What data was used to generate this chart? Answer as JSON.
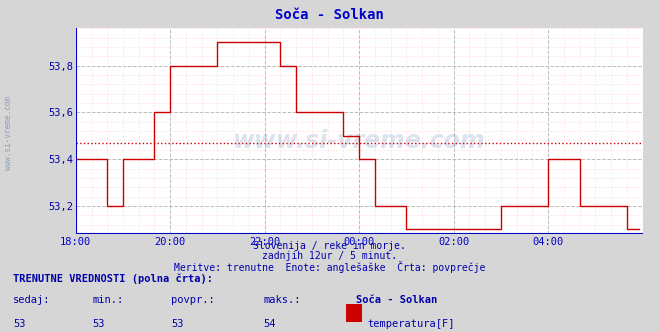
{
  "title": "Soča - Solkan",
  "bg_color": "#d6d6d6",
  "plot_bg_color": "#ffffff",
  "line_color": "#cc0000",
  "avg_line_color": "#cc0000",
  "x_axis_color": "#0000cc",
  "y_axis_color": "#0000aa",
  "title_color": "#0000cc",
  "subtitle_color": "#0000aa",
  "xticks": [
    "18:00",
    "20:00",
    "22:00",
    "00:00",
    "02:00",
    "04:00"
  ],
  "xtick_positions": [
    0,
    24,
    48,
    72,
    96,
    120
  ],
  "yticks": [
    "53,2",
    "53,4",
    "53,6",
    "53,8"
  ],
  "ytick_values": [
    53.2,
    53.4,
    53.6,
    53.8
  ],
  "ylim": [
    53.08,
    53.96
  ],
  "xlim": [
    0,
    144
  ],
  "avg_value": 53.47,
  "data_x": [
    0,
    1,
    2,
    3,
    4,
    5,
    6,
    7,
    8,
    9,
    10,
    11,
    12,
    13,
    14,
    15,
    16,
    17,
    18,
    19,
    20,
    21,
    22,
    23,
    24,
    25,
    26,
    27,
    28,
    29,
    30,
    31,
    32,
    33,
    34,
    35,
    36,
    37,
    38,
    39,
    40,
    41,
    42,
    43,
    44,
    45,
    46,
    47,
    48,
    49,
    50,
    51,
    52,
    53,
    54,
    55,
    56,
    57,
    58,
    59,
    60,
    61,
    62,
    63,
    64,
    65,
    66,
    67,
    68,
    69,
    70,
    71,
    72,
    73,
    74,
    75,
    76,
    77,
    78,
    79,
    80,
    81,
    82,
    83,
    84,
    85,
    86,
    87,
    88,
    89,
    90,
    91,
    92,
    93,
    94,
    95,
    96,
    97,
    98,
    99,
    100,
    101,
    102,
    103,
    104,
    105,
    106,
    107,
    108,
    109,
    110,
    111,
    112,
    113,
    114,
    115,
    116,
    117,
    118,
    119,
    120,
    121,
    122,
    123,
    124,
    125,
    126,
    127,
    128,
    129,
    130,
    131,
    132,
    133,
    134,
    135,
    136,
    137,
    138,
    139,
    140,
    141,
    142,
    143
  ],
  "data_y": [
    53.4,
    53.4,
    53.4,
    53.4,
    53.4,
    53.4,
    53.4,
    53.4,
    53.2,
    53.2,
    53.2,
    53.2,
    53.4,
    53.4,
    53.4,
    53.4,
    53.4,
    53.4,
    53.4,
    53.4,
    53.6,
    53.6,
    53.6,
    53.6,
    53.8,
    53.8,
    53.8,
    53.8,
    53.8,
    53.8,
    53.8,
    53.8,
    53.8,
    53.8,
    53.8,
    53.8,
    53.9,
    53.9,
    53.9,
    53.9,
    53.9,
    53.9,
    53.9,
    53.9,
    53.9,
    53.9,
    53.9,
    53.9,
    53.9,
    53.9,
    53.9,
    53.9,
    53.8,
    53.8,
    53.8,
    53.8,
    53.6,
    53.6,
    53.6,
    53.6,
    53.6,
    53.6,
    53.6,
    53.6,
    53.6,
    53.6,
    53.6,
    53.6,
    53.5,
    53.5,
    53.5,
    53.5,
    53.4,
    53.4,
    53.4,
    53.4,
    53.2,
    53.2,
    53.2,
    53.2,
    53.2,
    53.2,
    53.2,
    53.2,
    53.1,
    53.1,
    53.1,
    53.1,
    53.1,
    53.1,
    53.1,
    53.1,
    53.1,
    53.1,
    53.1,
    53.1,
    53.1,
    53.1,
    53.1,
    53.1,
    53.1,
    53.1,
    53.1,
    53.1,
    53.1,
    53.1,
    53.1,
    53.1,
    53.2,
    53.2,
    53.2,
    53.2,
    53.2,
    53.2,
    53.2,
    53.2,
    53.2,
    53.2,
    53.2,
    53.2,
    53.4,
    53.4,
    53.4,
    53.4,
    53.4,
    53.4,
    53.4,
    53.4,
    53.2,
    53.2,
    53.2,
    53.2,
    53.2,
    53.2,
    53.2,
    53.2,
    53.2,
    53.2,
    53.2,
    53.2,
    53.1,
    53.1,
    53.1,
    53.1
  ],
  "footer_line1": "Slovenija / reke in morje.",
  "footer_line2": "zadnjih 12ur / 5 minut.",
  "footer_line3": "Meritve: trenutne  Enote: anglešaške  Črta: povprečje",
  "bottom_label": "TRENUTNE VREDNOSTI (polna črta):",
  "bottom_cols": [
    "sedaj:",
    "min.:",
    "povpr.:",
    "maks.:",
    "Soča - Solkan"
  ],
  "bottom_vals": [
    "53",
    "53",
    "53",
    "54"
  ],
  "bottom_unit": "temperatura[F]",
  "bottom_rect_color": "#cc0000",
  "watermark": "www.si-vreme.com",
  "sidevreme": "www.si-vreme.com"
}
